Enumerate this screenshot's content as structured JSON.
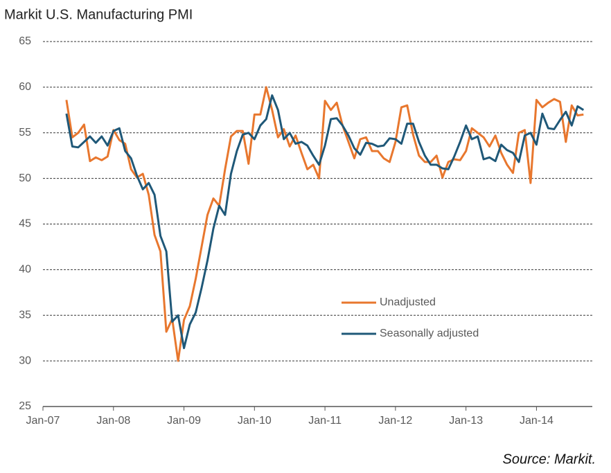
{
  "chart_data": {
    "type": "line",
    "title": "Markit U.S. Manufacturing  PMI",
    "source": "Source: Markit.",
    "categories": [
      "Jan-07",
      null,
      null,
      null,
      null,
      null,
      null,
      null,
      null,
      null,
      null,
      null,
      "Jan-08",
      null,
      null,
      null,
      null,
      null,
      null,
      null,
      null,
      null,
      null,
      null,
      "Jan-09",
      null,
      null,
      null,
      null,
      null,
      null,
      null,
      null,
      null,
      null,
      null,
      "Jan-10",
      null,
      null,
      null,
      null,
      null,
      null,
      null,
      null,
      null,
      null,
      null,
      "Jan-11",
      null,
      null,
      null,
      null,
      null,
      null,
      null,
      null,
      null,
      null,
      null,
      "Jan-12",
      null,
      null,
      null,
      null,
      null,
      null,
      null,
      null,
      null,
      null,
      null,
      "Jan-13",
      null,
      null,
      null,
      null,
      null,
      null,
      null,
      null,
      null,
      null,
      null,
      "Jan-14",
      null,
      null,
      null,
      null,
      null,
      null,
      null,
      null
    ],
    "series": [
      {
        "name": "Unadjusted",
        "color": "#e8772e",
        "values": [
          null,
          null,
          null,
          null,
          58.6,
          54.5,
          55,
          55.9,
          51.9,
          52.3,
          52,
          52.4,
          55.3,
          54.2,
          53.8,
          51,
          50.1,
          50.5,
          48.2,
          43.8,
          42,
          33.2,
          34.6,
          30,
          34.5,
          36,
          39,
          42.5,
          46,
          47.8,
          47,
          51,
          54.6,
          55.2,
          55.2,
          51.6,
          57,
          57,
          60,
          57.5,
          54.5,
          55.4,
          53.5,
          54.7,
          52.8,
          51,
          51.5,
          50,
          58.5,
          57.5,
          58.3,
          55.8,
          54,
          52.2,
          54.3,
          54.5,
          53,
          53,
          52.2,
          51.8,
          54,
          57.8,
          58,
          54.8,
          52.5,
          51.8,
          51.8,
          52.5,
          50.1,
          51.8,
          52.1,
          52,
          53,
          55.5,
          55,
          54.5,
          53.5,
          54.7,
          52.8,
          51.5,
          50.6,
          55,
          55.3,
          49.5,
          58.6,
          57.8,
          58.3,
          58.7,
          58.4,
          54,
          58,
          56.9,
          57
        ]
      },
      {
        "name": "Seasonally adjusted",
        "color": "#1f5878",
        "values": [
          null,
          null,
          null,
          null,
          57.1,
          53.5,
          53.4,
          54,
          54.6,
          53.9,
          54.6,
          53.6,
          55.2,
          55.5,
          53,
          52.2,
          50.3,
          48.8,
          49.5,
          48.2,
          43.7,
          42,
          34.3,
          35,
          31.4,
          34,
          35.3,
          38,
          41,
          44.5,
          47,
          46,
          50.5,
          53,
          54.8,
          55,
          54.3,
          55.8,
          56.5,
          59.1,
          57.5,
          54.3,
          55,
          53.8,
          54,
          53.6,
          52.5,
          51.5,
          53.6,
          56.5,
          56.6,
          55.8,
          54.7,
          53.3,
          52.6,
          53.9,
          53.8,
          53.5,
          53.6,
          54.4,
          54.3,
          53.8,
          56,
          56,
          54,
          52.5,
          51.5,
          51.5,
          51.1,
          51,
          52.4,
          54,
          55.8,
          54.3,
          54.6,
          52.1,
          52.3,
          51.9,
          53.7,
          53.1,
          52.8,
          51.8,
          54.7,
          55,
          53.7,
          57.1,
          55.5,
          55.4,
          56.4,
          57.3,
          55.8,
          57.9,
          57.5
        ]
      }
    ],
    "ylim": [
      25,
      65
    ],
    "yticks": [
      25,
      30,
      35,
      40,
      45,
      50,
      55,
      60,
      65
    ],
    "grid": true
  }
}
